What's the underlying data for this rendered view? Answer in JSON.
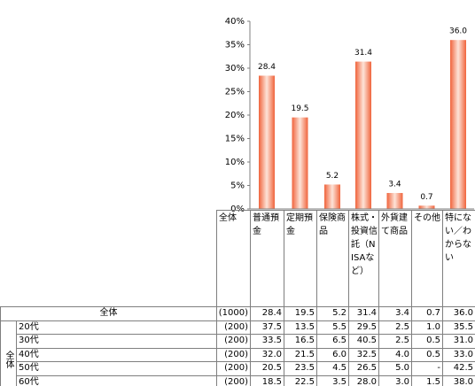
{
  "chart_data": {
    "type": "bar",
    "categories": [
      "普通預金",
      "定期預金",
      "保険商品",
      "株式・投資信託（NISAなど）",
      "外貨建て商品",
      "その他",
      "特にない／わからない"
    ],
    "values": [
      28.4,
      19.5,
      5.2,
      31.4,
      3.4,
      0.7,
      36
    ],
    "value_labels": [
      "28.4",
      "19.5",
      "5.2",
      "31.4",
      "3.4",
      "0.7",
      "36.0"
    ],
    "color": "#f0643c",
    "ylim": [
      0,
      40
    ],
    "yticks": [
      {
        "value": 0,
        "label": "0%"
      },
      {
        "value": 5,
        "label": "5%"
      },
      {
        "value": 10,
        "label": "10%"
      },
      {
        "value": 15,
        "label": "15%"
      },
      {
        "value": 20,
        "label": "20%"
      },
      {
        "value": 25,
        "label": "25%"
      },
      {
        "value": 30,
        "label": "30%"
      },
      {
        "value": 35,
        "label": "35%"
      },
      {
        "value": 40,
        "label": "40%"
      }
    ],
    "grid": false
  },
  "table": {
    "corner": "全体",
    "group": "全体",
    "rows": [
      [
        "全体",
        "(1000)",
        "28.4",
        "19.5",
        "5.2",
        "31.4",
        "3.4",
        "0.7",
        "36.0"
      ],
      [
        "20代",
        "(200)",
        "37.5",
        "13.5",
        "5.5",
        "29.5",
        "2.5",
        "1.0",
        "35.5"
      ],
      [
        "30代",
        "(200)",
        "33.5",
        "16.5",
        "6.5",
        "40.5",
        "2.5",
        "0.5",
        "31.0"
      ],
      [
        "40代",
        "(200)",
        "32.0",
        "21.5",
        "6.0",
        "32.5",
        "4.0",
        "0.5",
        "33.0"
      ],
      [
        "50代",
        "(200)",
        "20.5",
        "23.5",
        "4.5",
        "26.5",
        "5.0",
        "-",
        "42.5"
      ],
      [
        "60代",
        "(200)",
        "18.5",
        "22.5",
        "3.5",
        "28.0",
        "3.0",
        "1.5",
        "38.0"
      ]
    ]
  }
}
